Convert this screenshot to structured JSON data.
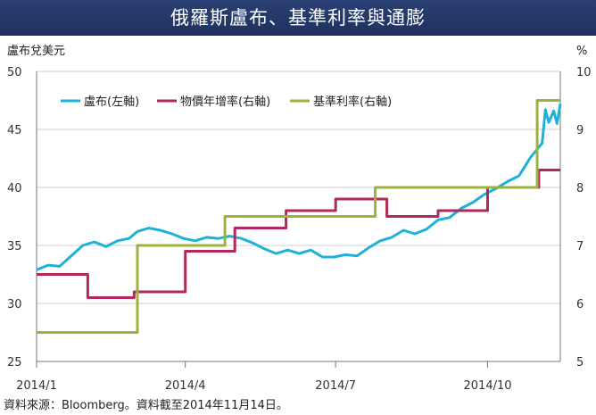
{
  "title": "俄羅斯盧布、基準利率與通膨",
  "source_note": "資料來源：Bloomberg。資料截至2014年11月14日。",
  "colors": {
    "title_bg": "#23366a",
    "ruble": "#1fb2d8",
    "inflation": "#b2285e",
    "policy_rate": "#9bb33c",
    "axis": "#777777"
  },
  "chart_data": {
    "type": "line",
    "title": "俄羅斯盧布、基準利率與通膨",
    "left_axis_label": "盧布兌美元",
    "right_axis_label": "%",
    "left_ylim": [
      25,
      50
    ],
    "right_ylim": [
      5,
      10
    ],
    "left_ticks": [
      "25",
      "30",
      "35",
      "40",
      "45",
      "50"
    ],
    "right_ticks": [
      "5",
      "6",
      "7",
      "8",
      "9",
      "10"
    ],
    "x_range": [
      "2014-01-01",
      "2014-11-14"
    ],
    "x_ticks": [
      {
        "date": "2014-01-01",
        "label": "2014/1"
      },
      {
        "date": "2014-04-01",
        "label": "2014/4"
      },
      {
        "date": "2014-07-01",
        "label": "2014/7"
      },
      {
        "date": "2014-10-01",
        "label": "2014/10"
      }
    ],
    "grid": true,
    "legend_position": "top-left",
    "series": [
      {
        "name": "盧布(左軸)",
        "axis": "left",
        "color": "#1fb2d8",
        "style": "line",
        "points": [
          [
            "2014-01-01",
            32.9
          ],
          [
            "2014-01-08",
            33.3
          ],
          [
            "2014-01-15",
            33.2
          ],
          [
            "2014-01-22",
            34.1
          ],
          [
            "2014-01-29",
            35.0
          ],
          [
            "2014-02-05",
            35.3
          ],
          [
            "2014-02-12",
            34.9
          ],
          [
            "2014-02-19",
            35.4
          ],
          [
            "2014-02-26",
            35.6
          ],
          [
            "2014-03-03",
            36.2
          ],
          [
            "2014-03-10",
            36.5
          ],
          [
            "2014-03-17",
            36.3
          ],
          [
            "2014-03-24",
            36.0
          ],
          [
            "2014-03-31",
            35.6
          ],
          [
            "2014-04-07",
            35.4
          ],
          [
            "2014-04-14",
            35.7
          ],
          [
            "2014-04-21",
            35.6
          ],
          [
            "2014-04-28",
            35.8
          ],
          [
            "2014-05-05",
            35.6
          ],
          [
            "2014-05-12",
            35.2
          ],
          [
            "2014-05-19",
            34.7
          ],
          [
            "2014-05-26",
            34.3
          ],
          [
            "2014-06-02",
            34.6
          ],
          [
            "2014-06-09",
            34.3
          ],
          [
            "2014-06-16",
            34.6
          ],
          [
            "2014-06-23",
            34.0
          ],
          [
            "2014-06-30",
            34.0
          ],
          [
            "2014-07-07",
            34.2
          ],
          [
            "2014-07-14",
            34.1
          ],
          [
            "2014-07-21",
            34.8
          ],
          [
            "2014-07-28",
            35.4
          ],
          [
            "2014-08-04",
            35.7
          ],
          [
            "2014-08-11",
            36.3
          ],
          [
            "2014-08-18",
            36.0
          ],
          [
            "2014-08-25",
            36.4
          ],
          [
            "2014-09-01",
            37.2
          ],
          [
            "2014-09-08",
            37.4
          ],
          [
            "2014-09-15",
            38.2
          ],
          [
            "2014-09-22",
            38.7
          ],
          [
            "2014-09-29",
            39.4
          ],
          [
            "2014-10-06",
            39.9
          ],
          [
            "2014-10-13",
            40.5
          ],
          [
            "2014-10-20",
            41.0
          ],
          [
            "2014-10-27",
            42.6
          ],
          [
            "2014-11-03",
            43.8
          ],
          [
            "2014-11-05",
            46.7
          ],
          [
            "2014-11-07",
            45.6
          ],
          [
            "2014-11-10",
            46.6
          ],
          [
            "2014-11-12",
            45.5
          ],
          [
            "2014-11-14",
            47.2
          ]
        ]
      },
      {
        "name": "物價年增率(右軸)",
        "axis": "right",
        "color": "#b2285e",
        "style": "step",
        "points": [
          [
            "2014-01-01",
            6.5
          ],
          [
            "2014-02-01",
            6.1
          ],
          [
            "2014-03-01",
            6.2
          ],
          [
            "2014-04-01",
            6.9
          ],
          [
            "2014-05-01",
            7.3
          ],
          [
            "2014-06-01",
            7.6
          ],
          [
            "2014-07-01",
            7.8
          ],
          [
            "2014-08-01",
            7.5
          ],
          [
            "2014-09-01",
            7.6
          ],
          [
            "2014-10-01",
            8.0
          ],
          [
            "2014-11-01",
            8.3
          ],
          [
            "2014-11-14",
            8.3
          ]
        ]
      },
      {
        "name": "基準利率(右軸)",
        "axis": "right",
        "color": "#9bb33c",
        "style": "step",
        "points": [
          [
            "2014-01-01",
            5.5
          ],
          [
            "2014-03-03",
            7.0
          ],
          [
            "2014-04-25",
            7.5
          ],
          [
            "2014-07-25",
            8.0
          ],
          [
            "2014-10-31",
            9.5
          ],
          [
            "2014-11-14",
            9.5
          ]
        ]
      }
    ]
  }
}
